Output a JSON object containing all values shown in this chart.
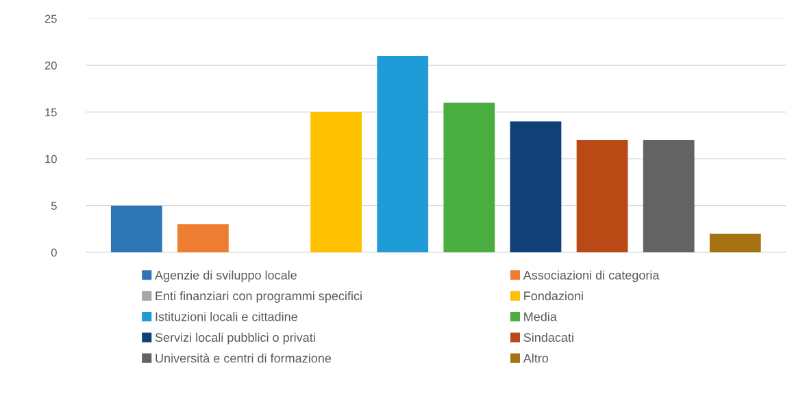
{
  "chart_data": {
    "type": "bar",
    "categories": [
      null
    ],
    "series": [
      {
        "name": "Agenzie di sviluppo locale",
        "color": "#2e75b6",
        "values": [
          5
        ]
      },
      {
        "name": "Associazioni di categoria",
        "color": "#ed7d31",
        "values": [
          3
        ]
      },
      {
        "name": "Enti finanziari con programmi specifici",
        "color": "#a5a5a5",
        "values": [
          0
        ]
      },
      {
        "name": "Fondazioni",
        "color": "#ffc000",
        "values": [
          15
        ]
      },
      {
        "name": "Istituzioni locali e cittadine",
        "color": "#1f9bd7",
        "values": [
          21
        ]
      },
      {
        "name": "Media",
        "color": "#4aad3f",
        "values": [
          16
        ]
      },
      {
        "name": "Servizi locali pubblici o privati",
        "color": "#114079",
        "values": [
          14
        ]
      },
      {
        "name": "Sindacati",
        "color": "#b94a16",
        "values": [
          12
        ]
      },
      {
        "name": "Università e centri di formazione",
        "color": "#636363",
        "values": [
          12
        ]
      },
      {
        "name": "Altro",
        "color": "#a67313",
        "values": [
          2
        ]
      }
    ],
    "ylim": [
      0,
      25
    ],
    "yticks": [
      0,
      5,
      10,
      15,
      20,
      25
    ],
    "grid": "y",
    "legend": "bottom"
  }
}
